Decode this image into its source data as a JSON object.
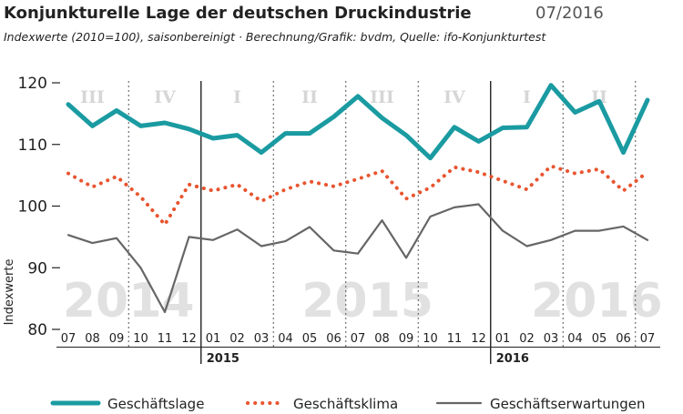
{
  "header": {
    "title": "Konjunkturelle Lage der deutschen Druckindustrie",
    "period": "07/2016",
    "subtitle": "Indexwerte (2010=100), saisonbereinigt  ·  Berechnung/Grafik: bvdm, Quelle: ifo-Konjunkturtest"
  },
  "colors": {
    "geschaeftslage": "#1a9ba1",
    "geschaeftsklima": "#e8542f",
    "geschaeftserwartungen": "#666666",
    "grid": "#222222",
    "watermark": "#e1e1e1",
    "quarter": "#d6d6d6"
  },
  "chart_data": {
    "type": "line",
    "title": "Konjunkturelle Lage der deutschen Druckindustrie",
    "ylabel": "Indexwerte",
    "xlabel": "",
    "ylim": [
      80,
      120
    ],
    "yticks": [
      80,
      90,
      100,
      110,
      120
    ],
    "grid": "vertical separators at quarter and year boundaries",
    "legend_position": "bottom",
    "categories": [
      "07",
      "08",
      "09",
      "10",
      "11",
      "12",
      "01",
      "02",
      "03",
      "04",
      "05",
      "06",
      "07",
      "08",
      "09",
      "10",
      "11",
      "12",
      "01",
      "02",
      "03",
      "04",
      "05",
      "06",
      "07"
    ],
    "year_markers": [
      {
        "label": "2015",
        "index": 6
      },
      {
        "label": "2016",
        "index": 18
      }
    ],
    "background_years": [
      "2014",
      "2015",
      "2016"
    ],
    "quarters": [
      "III",
      "IV",
      "I",
      "II",
      "III",
      "IV",
      "I",
      "II"
    ],
    "series": [
      {
        "name": "Geschäftslage",
        "style": "solid-thick",
        "values": [
          116.5,
          113,
          115.5,
          113,
          113.5,
          112.5,
          111,
          111.5,
          108.7,
          111.8,
          111.8,
          114.5,
          117.8,
          114.3,
          111.5,
          107.8,
          112.8,
          110.5,
          112.7,
          112.8,
          119.6,
          115.2,
          117,
          108.7,
          117.2
        ]
      },
      {
        "name": "Geschäftsklima",
        "style": "dotted",
        "values": [
          105.3,
          103.1,
          104.8,
          101.5,
          97,
          103.5,
          102.5,
          103.5,
          100.8,
          102.7,
          104,
          103.2,
          104.4,
          105.7,
          101.2,
          103,
          106.3,
          105.5,
          104.1,
          102.7,
          106.5,
          105.3,
          106,
          102.5,
          105.5
        ]
      },
      {
        "name": "Geschäftserwartungen",
        "style": "solid-thin",
        "values": [
          95.3,
          94,
          94.8,
          90,
          82.8,
          95,
          94.5,
          96.2,
          93.5,
          94.3,
          96.6,
          92.8,
          92.3,
          97.7,
          91.6,
          98.3,
          99.8,
          100.3,
          96,
          93.5,
          94.5,
          96,
          96,
          96.7,
          94.5
        ]
      }
    ]
  }
}
